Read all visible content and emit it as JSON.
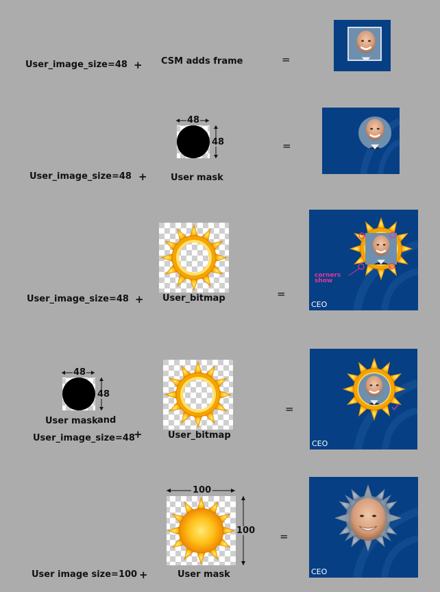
{
  "rows": [
    {
      "left_label": "User_image_size=48",
      "plus": "+",
      "middle_label": "CSM adds frame",
      "equals": "="
    },
    {
      "left_label": "User_image_size=48",
      "plus": "+",
      "middle_label": "User mask",
      "equals": "=",
      "dim_w": "48",
      "dim_h": "48"
    },
    {
      "left_label": "User_image_size=48",
      "plus": "+",
      "middle_label": "User_bitmap",
      "equals": "=",
      "annotation": "corners\nshow",
      "tile_caption": "CEO"
    },
    {
      "mask_label": "User mask",
      "and_label": "and",
      "left_label": "User_image_size=48",
      "plus": "+",
      "middle_label": "User_bitmap",
      "equals": "=",
      "dim_w": "48",
      "dim_h": "48",
      "tile_caption": "CEO"
    },
    {
      "left_label": "User image size=100",
      "plus": "+",
      "middle_label": "User mask",
      "equals": "=",
      "dim_w": "100",
      "dim_h": "100",
      "tile_caption": "CEO"
    }
  ],
  "colors": {
    "tile_bg": "#063f84",
    "page_bg": "#acacac",
    "annotation": "#e0379c",
    "sun_outer": "#f7b21b",
    "sun_inner": "#ffe87a"
  }
}
